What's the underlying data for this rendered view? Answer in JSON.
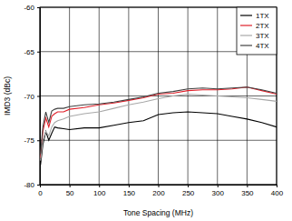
{
  "chart_data": {
    "type": "line",
    "x_label": "Tone Spacing (MHz)",
    "y_label": "IMD3 (dBc)",
    "x": [
      1,
      5,
      10,
      15,
      20,
      25,
      30,
      40,
      50,
      75,
      100,
      125,
      150,
      175,
      200,
      225,
      250,
      275,
      300,
      325,
      350,
      375,
      400
    ],
    "series": [
      {
        "name": "1TX",
        "color": "#000000",
        "values": [
          -77.8,
          -75.5,
          -74,
          -75,
          -74.2,
          -73.5,
          -73.6,
          -73.7,
          -73.8,
          -73.6,
          -73.6,
          -73.3,
          -73,
          -72.8,
          -72.1,
          -71.9,
          -71.8,
          -71.9,
          -72,
          -72.3,
          -72.6,
          -73,
          -73.5
        ]
      },
      {
        "name": "2TX",
        "color": "#e0202a",
        "values": [
          -77,
          -74,
          -72.5,
          -73.5,
          -72.3,
          -72,
          -71.8,
          -71.8,
          -71.5,
          -71.3,
          -71,
          -70.8,
          -70.5,
          -70.2,
          -69.8,
          -69.7,
          -69.4,
          -69.3,
          -69.3,
          -69.2,
          -69,
          -69.4,
          -69.8
        ]
      },
      {
        "name": "3TX",
        "color": "#a8a8a8",
        "values": [
          -77.3,
          -75,
          -74,
          -74.5,
          -73.5,
          -73,
          -72.8,
          -72.6,
          -72.3,
          -72,
          -71.8,
          -71.4,
          -71,
          -70.7,
          -70.3,
          -70,
          -69.8,
          -69.9,
          -70,
          -70.1,
          -70.2,
          -70.4,
          -70.6
        ]
      },
      {
        "name": "4TX",
        "color": "#404040",
        "values": [
          -76.5,
          -73.5,
          -71.8,
          -73,
          -71.7,
          -71.5,
          -71.4,
          -71.4,
          -71.2,
          -71,
          -70.9,
          -70.7,
          -70.4,
          -70.1,
          -69.7,
          -69.5,
          -69.2,
          -69.1,
          -69.2,
          -69.1,
          -69,
          -69.3,
          -69.7
        ]
      }
    ],
    "xlim": [
      0,
      400
    ],
    "xticks": [
      0,
      50,
      100,
      150,
      200,
      250,
      300,
      350,
      400
    ],
    "ylim": [
      -80,
      -60
    ],
    "yticks": [
      -80,
      -75,
      -70,
      -65,
      -60
    ],
    "grid": true,
    "legend": "upper right"
  }
}
